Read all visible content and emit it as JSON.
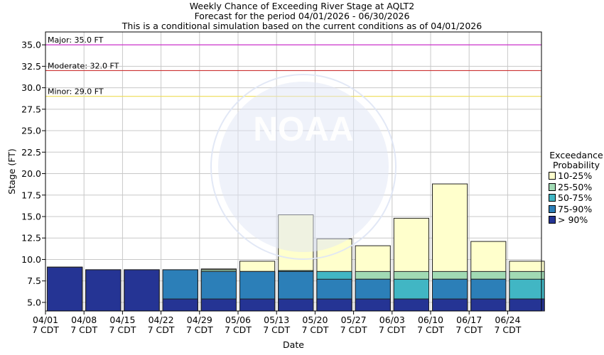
{
  "titles": {
    "line1": "Weekly Chance of Exceeding River Stage at AQLT2",
    "line2": "Forecast for the period 04/01/2026 - 06/30/2026",
    "line3": "This is a conditional simulation based on the current conditions as of 04/01/2026"
  },
  "watermark": {
    "logo_text": "NOAA",
    "ring_text": "NATIONAL OCEANIC AND ATMOSPHERIC ADMINISTRATION"
  },
  "legend": {
    "title_line1": "Exceedance",
    "title_line2": "Probability",
    "items": [
      {
        "label": "10-25%",
        "color": "#ffffcc"
      },
      {
        "label": "25-50%",
        "color": "#a1dab4"
      },
      {
        "label": "50-75%",
        "color": "#41b6c4"
      },
      {
        "label": "75-90%",
        "color": "#2c7fb8"
      },
      {
        "label": "> 90%",
        "color": "#253494"
      }
    ]
  },
  "chart_data": {
    "type": "bar",
    "xlabel": "Date",
    "ylabel": "Stage (FT)",
    "ylim": [
      4.0,
      36.5
    ],
    "yticks": [
      5.0,
      7.5,
      10.0,
      12.5,
      15.0,
      17.5,
      20.0,
      22.5,
      25.0,
      27.5,
      30.0,
      32.5,
      35.0
    ],
    "grid": true,
    "legend_position": "right",
    "categories": [
      "04/01",
      "04/08",
      "04/15",
      "04/22",
      "04/29",
      "05/06",
      "05/13",
      "05/20",
      "05/27",
      "06/03",
      "06/10",
      "06/17",
      "06/24"
    ],
    "tick_sublabel": "7 CDT",
    "thresholds": [
      {
        "label": "Major: 35.0 FT",
        "value": 35.0,
        "color": "#cc33cc"
      },
      {
        "label": "Moderate: 32.0 FT",
        "value": 32.0,
        "color": "#cc3333"
      },
      {
        "label": "Minor: 29.0 FT",
        "value": 29.0,
        "color": "#eedd55"
      }
    ],
    "series": [
      {
        "name": "> 90%",
        "color": "#253494",
        "values": [
          9.1,
          8.8,
          8.8,
          5.4,
          5.4,
          5.4,
          5.4,
          5.4,
          5.4,
          5.4,
          5.4,
          5.4,
          5.4
        ]
      },
      {
        "name": "75-90%",
        "color": "#2c7fb8",
        "values": [
          9.1,
          8.8,
          8.8,
          8.8,
          8.6,
          8.6,
          8.6,
          7.7,
          7.7,
          5.4,
          7.7,
          7.7,
          5.4
        ]
      },
      {
        "name": "50-75%",
        "color": "#41b6c4",
        "values": [
          9.1,
          8.8,
          8.8,
          8.8,
          8.6,
          8.6,
          8.7,
          8.6,
          7.7,
          7.7,
          7.7,
          7.7,
          7.7
        ]
      },
      {
        "name": "25-50%",
        "color": "#a1dab4",
        "values": [
          9.1,
          8.8,
          8.8,
          8.8,
          8.8,
          8.6,
          8.7,
          8.6,
          8.6,
          8.6,
          8.6,
          8.6,
          8.6
        ]
      },
      {
        "name": "10-25%",
        "color": "#ffffcc",
        "values": [
          9.1,
          8.8,
          8.8,
          8.8,
          8.9,
          9.8,
          15.2,
          12.4,
          11.6,
          14.8,
          18.8,
          12.1,
          9.8
        ]
      }
    ]
  }
}
